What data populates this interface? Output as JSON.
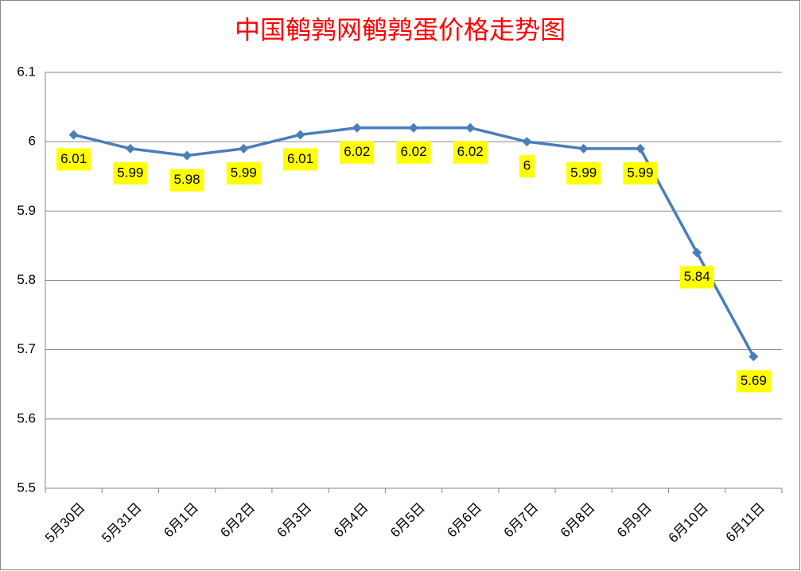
{
  "chart_data": {
    "type": "line",
    "title": "中国鹌鹑网鹌鹑蛋价格走势图",
    "categories": [
      "5月30日",
      "5月31日",
      "6月1日",
      "6月2日",
      "6月3日",
      "6月4日",
      "6月5日",
      "6月6日",
      "6月7日",
      "6月8日",
      "6月9日",
      "6月10日",
      "6月11日"
    ],
    "series": [
      {
        "name": "鹌鹑蛋价格",
        "color": "#4a7ebb",
        "values": [
          6.01,
          5.99,
          5.98,
          5.99,
          6.01,
          6.02,
          6.02,
          6.02,
          6,
          5.99,
          5.99,
          5.84,
          5.69
        ]
      }
    ],
    "ylim": [
      5.5,
      6.1
    ],
    "yticks": [
      5.5,
      5.6,
      5.7,
      5.8,
      5.9,
      6,
      6.1
    ],
    "grid": true,
    "label_background": "#ffff00",
    "title_color": "#ff0000"
  }
}
